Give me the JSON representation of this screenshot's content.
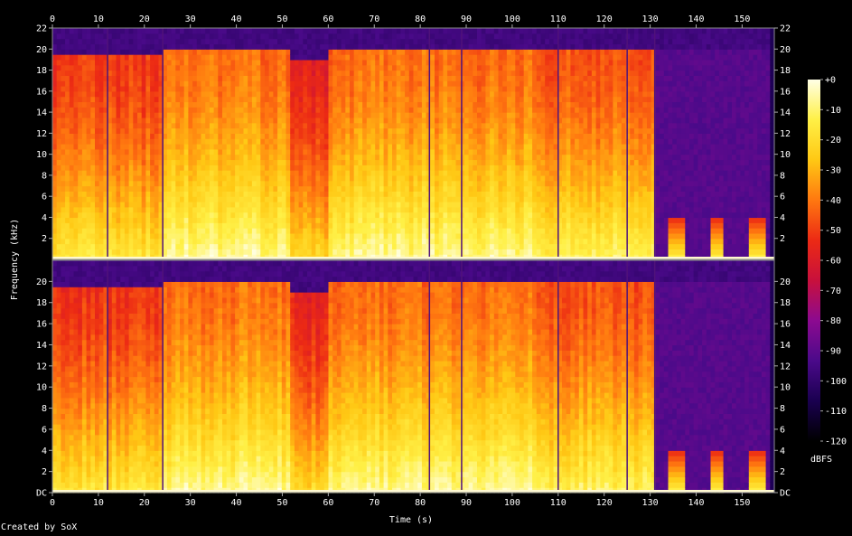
{
  "chart_data": {
    "type": "heatmap",
    "subtype": "spectrogram",
    "channels": 2,
    "title": "",
    "xlabel": "Time (s)",
    "ylabel": "Frequency (kHz)",
    "xlim": [
      0,
      157
    ],
    "ylim": [
      0,
      22
    ],
    "x_ticks": [
      0,
      10,
      20,
      30,
      40,
      50,
      60,
      70,
      80,
      90,
      100,
      110,
      120,
      130,
      140,
      150
    ],
    "y_ticks_top_channel": [
      "2",
      "4",
      "6",
      "8",
      "10",
      "12",
      "14",
      "16",
      "18",
      "20",
      "22"
    ],
    "y_ticks_bottom_channel": [
      "DC",
      "2",
      "4",
      "6",
      "8",
      "10",
      "12",
      "14",
      "16",
      "18",
      "20"
    ],
    "colorbar": {
      "label": "dBFS",
      "range": [
        -120,
        0
      ],
      "ticks": [
        "+0",
        "-10",
        "-20",
        "-30",
        "-40",
        "-50",
        "-60",
        "-70",
        "-80",
        "-90",
        "-100",
        "-110",
        "-120"
      ]
    },
    "colormap": [
      "#000000",
      "#1a0050",
      "#4b0a8a",
      "#8c0a90",
      "#c8103c",
      "#ec2a14",
      "#ff7810",
      "#ffc814",
      "#fff046",
      "#ffffe6"
    ],
    "segments": [
      {
        "t0": 0,
        "t1": 24,
        "cutoff_khz": 19.5,
        "level": 0.62
      },
      {
        "t0": 24,
        "t1": 52,
        "cutoff_khz": 20,
        "level": 0.7
      },
      {
        "t0": 52,
        "t1": 60,
        "cutoff_khz": 19,
        "level": 0.58
      },
      {
        "t0": 60,
        "t1": 89,
        "cutoff_khz": 20,
        "level": 0.7
      },
      {
        "t0": 89,
        "t1": 105,
        "cutoff_khz": 20,
        "level": 0.7
      },
      {
        "t0": 105,
        "t1": 131,
        "cutoff_khz": 20,
        "level": 0.66
      },
      {
        "t0": 131,
        "t1": 156,
        "cutoff_khz": 20,
        "level": 0.26
      }
    ],
    "dropouts_s": [
      12,
      24,
      82,
      89,
      110,
      125,
      131
    ],
    "grid": false
  },
  "credit": "Created by SoX"
}
